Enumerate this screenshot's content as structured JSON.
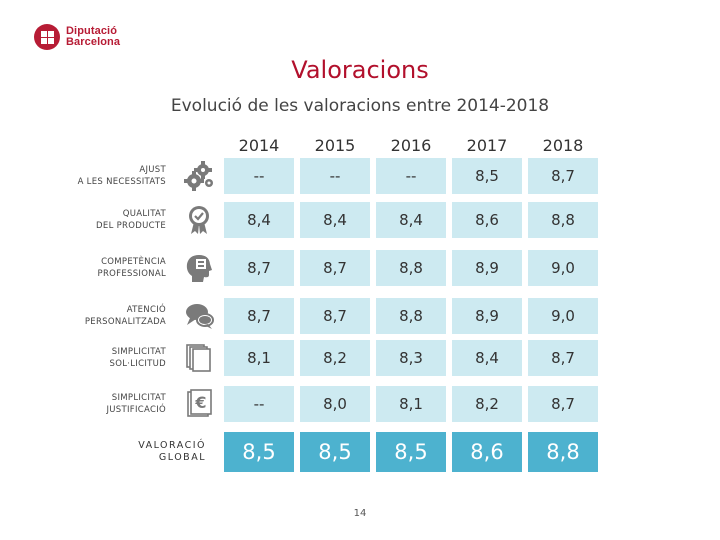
{
  "logo": {
    "line1": "Diputació",
    "line2": "Barcelona"
  },
  "title": "Valoracions",
  "subtitle": "Evolució de les valoracions entre 2014-2018",
  "years": [
    "2014",
    "2015",
    "2016",
    "2017",
    "2018"
  ],
  "rows": [
    {
      "label_line1": "AJUST",
      "label_line2": "A LES NECESSITATS",
      "icon": "gears-icon",
      "values": [
        "--",
        "--",
        "--",
        "8,5",
        "8,7"
      ]
    },
    {
      "label_line1": "QUALITAT",
      "label_line2": "DEL PRODUCTE",
      "icon": "quality-badge-icon",
      "values": [
        "8,4",
        "8,4",
        "8,4",
        "8,6",
        "8,8"
      ]
    },
    {
      "label_line1": "COMPETÈNCIA",
      "label_line2": "PROFESSIONAL",
      "icon": "head-brain-icon",
      "values": [
        "8,7",
        "8,7",
        "8,8",
        "8,9",
        "9,0"
      ]
    },
    {
      "label_line1": "ATENCIÓ",
      "label_line2": "PERSONALITZADA",
      "icon": "speech-bubbles-icon",
      "values": [
        "8,7",
        "8,7",
        "8,8",
        "8,9",
        "9,0"
      ]
    },
    {
      "label_line1": "SIMPLICITAT",
      "label_line2": "SOL·LICITUD",
      "icon": "documents-icon",
      "values": [
        "8,1",
        "8,2",
        "8,3",
        "8,4",
        "8,7"
      ]
    },
    {
      "label_line1": "SIMPLICITAT",
      "label_line2": "JUSTIFICACIÓ",
      "icon": "euro-document-icon",
      "values": [
        "--",
        "8,0",
        "8,1",
        "8,2",
        "8,7"
      ]
    }
  ],
  "global": {
    "label_line1": "VALORACIÓ",
    "label_line2": "GLOBAL",
    "values": [
      "8,5",
      "8,5",
      "8,5",
      "8,6",
      "8,8"
    ]
  },
  "page_number": "14",
  "colors": {
    "brand": "#b71c35",
    "cell": "#cdeaf1",
    "global_cell": "#4db2cf",
    "icon": "#7a7a7a"
  }
}
